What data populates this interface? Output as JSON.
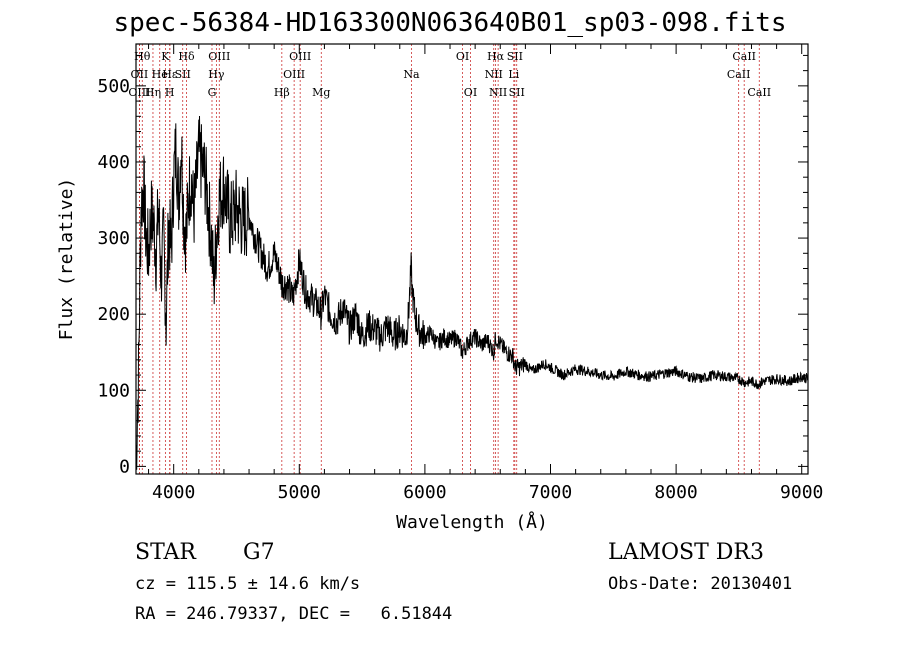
{
  "chart_data": {
    "type": "line",
    "title": "spec-56384-HD163300N063640B01_sp03-098.fits",
    "xlabel": "Wavelength (Å)",
    "ylabel": "Flux (relative)",
    "xlim": [
      3700,
      9050
    ],
    "ylim": [
      -10,
      555
    ],
    "xticks": [
      4000,
      5000,
      6000,
      7000,
      8000,
      9000
    ],
    "yticks": [
      0,
      100,
      200,
      300,
      400,
      500
    ],
    "series": [
      {
        "name": "flux",
        "x": [
          3700,
          3720,
          3740,
          3760,
          3780,
          3800,
          3820,
          3840,
          3860,
          3880,
          3900,
          3920,
          3940,
          3960,
          3980,
          4000,
          4020,
          4040,
          4060,
          4080,
          4100,
          4120,
          4140,
          4160,
          4180,
          4200,
          4250,
          4300,
          4320,
          4340,
          4360,
          4400,
          4450,
          4500,
          4550,
          4600,
          4650,
          4700,
          4750,
          4800,
          4850,
          4861,
          4900,
          4950,
          5000,
          5050,
          5100,
          5150,
          5175,
          5200,
          5250,
          5300,
          5350,
          5400,
          5450,
          5500,
          5550,
          5600,
          5650,
          5700,
          5750,
          5800,
          5850,
          5870,
          5890,
          5900,
          5920,
          5950,
          6000,
          6050,
          6100,
          6150,
          6200,
          6250,
          6300,
          6350,
          6400,
          6450,
          6500,
          6550,
          6563,
          6600,
          6650,
          6700,
          6720,
          6750,
          6800,
          6850,
          6900,
          6950,
          7000,
          7100,
          7200,
          7300,
          7400,
          7500,
          7600,
          7700,
          7800,
          7900,
          8000,
          8100,
          8200,
          8300,
          8400,
          8500,
          8550,
          8600,
          8650,
          8700,
          8800,
          8900,
          9000,
          9050
        ],
        "y": [
          5,
          120,
          340,
          370,
          300,
          280,
          330,
          320,
          280,
          340,
          250,
          300,
          190,
          320,
          280,
          380,
          420,
          350,
          430,
          330,
          300,
          360,
          380,
          330,
          370,
          410,
          380,
          300,
          240,
          300,
          350,
          370,
          320,
          340,
          320,
          330,
          300,
          280,
          260,
          280,
          250,
          240,
          240,
          220,
          270,
          230,
          220,
          210,
          200,
          225,
          200,
          190,
          210,
          180,
          200,
          170,
          185,
          180,
          170,
          185,
          170,
          180,
          170,
          200,
          260,
          230,
          200,
          180,
          170,
          175,
          160,
          170,
          165,
          170,
          150,
          165,
          170,
          160,
          165,
          150,
          170,
          160,
          150,
          145,
          130,
          130,
          135,
          125,
          130,
          135,
          130,
          120,
          128,
          125,
          120,
          118,
          125,
          120,
          118,
          122,
          125,
          118,
          115,
          120,
          118,
          115,
          110,
          112,
          108,
          112,
          115,
          112,
          118,
          115
        ]
      }
    ],
    "lines": [
      {
        "label": "OII",
        "wl": 3727,
        "row": 1
      },
      {
        "label": "OIII",
        "wl": 3727,
        "row": 2
      },
      {
        "label": "Hθ",
        "wl": 3750,
        "row": 0
      },
      {
        "label": "Hη",
        "wl": 3835,
        "row": 2
      },
      {
        "label": "He",
        "wl": 3889,
        "row": 1
      },
      {
        "label": "K",
        "wl": 3934,
        "row": 0
      },
      {
        "label": "Hε",
        "wl": 3970,
        "row": 1
      },
      {
        "label": "H",
        "wl": 3968,
        "row": 2
      },
      {
        "label": "Hδ",
        "wl": 4102,
        "row": 0
      },
      {
        "label": "SII",
        "wl": 4072,
        "row": 1
      },
      {
        "label": "OIII",
        "wl": 4363,
        "row": 0
      },
      {
        "label": "Hγ",
        "wl": 4340,
        "row": 1
      },
      {
        "label": "G",
        "wl": 4305,
        "row": 2
      },
      {
        "label": "Hβ",
        "wl": 4861,
        "row": 2
      },
      {
        "label": "OIII",
        "wl": 5007,
        "row": 0
      },
      {
        "label": "OIII",
        "wl": 4959,
        "row": 1
      },
      {
        "label": "Mg",
        "wl": 5175,
        "row": 2
      },
      {
        "label": "Na",
        "wl": 5893,
        "row": 1
      },
      {
        "label": "OI",
        "wl": 6300,
        "row": 0
      },
      {
        "label": "OI",
        "wl": 6363,
        "row": 2
      },
      {
        "label": "Hα",
        "wl": 6563,
        "row": 0
      },
      {
        "label": "NII",
        "wl": 6548,
        "row": 1
      },
      {
        "label": "NII",
        "wl": 6583,
        "row": 2
      },
      {
        "label": "SII",
        "wl": 6716,
        "row": 0
      },
      {
        "label": "Li",
        "wl": 6708,
        "row": 1
      },
      {
        "label": "SII",
        "wl": 6731,
        "row": 2
      },
      {
        "label": "CaII",
        "wl": 8542,
        "row": 0
      },
      {
        "label": "CaII",
        "wl": 8498,
        "row": 1
      },
      {
        "label": "CaII",
        "wl": 8662,
        "row": 2
      }
    ]
  },
  "info": {
    "object_class": "STAR",
    "subclass": "G7",
    "survey": "LAMOST DR3",
    "cz": "cz = 115.5 ± 14.6 km/s",
    "obs_date": "Obs-Date: 20130401",
    "coords": "RA = 246.79337, DEC =   6.51844"
  },
  "colors": {
    "line_marker": "#cc3333",
    "spectrum": "#000000",
    "axis": "#000000"
  }
}
